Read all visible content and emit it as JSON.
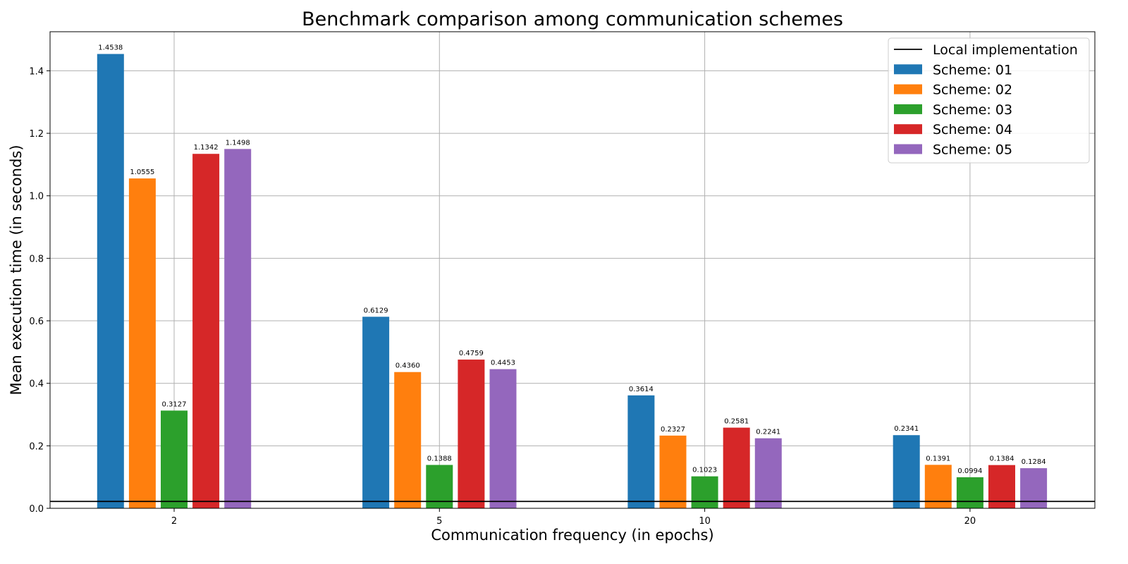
{
  "chart_data": {
    "type": "bar",
    "title": "Benchmark comparison among communication schemes",
    "xlabel": "Communication frequency (in epochs)",
    "ylabel": "Mean execution time (in seconds)",
    "categories": [
      "2",
      "5",
      "10",
      "20"
    ],
    "ylim": [
      0,
      1.525
    ],
    "yticks": [
      0.0,
      0.2,
      0.4,
      0.6,
      0.8,
      1.0,
      1.2,
      1.4
    ],
    "ytick_labels": [
      "0.0",
      "0.2",
      "0.4",
      "0.6",
      "0.8",
      "1.0",
      "1.2",
      "1.4"
    ],
    "grid": true,
    "legend_position": "top-right",
    "reference_line": {
      "name": "Local implementation",
      "value": 0.022,
      "color": "#000000"
    },
    "series": [
      {
        "name": "Scheme: 01",
        "color": "#1f77b4",
        "values": [
          1.4538,
          0.6129,
          0.3614,
          0.2341
        ],
        "labels": [
          "1.4538",
          "0.6129",
          "0.3614",
          "0.2341"
        ]
      },
      {
        "name": "Scheme: 02",
        "color": "#ff7f0e",
        "values": [
          1.0555,
          0.436,
          0.2327,
          0.1391
        ],
        "labels": [
          "1.0555",
          "0.4360",
          "0.2327",
          "0.1391"
        ]
      },
      {
        "name": "Scheme: 03",
        "color": "#2ca02c",
        "values": [
          0.3127,
          0.1388,
          0.1023,
          0.0994
        ],
        "labels": [
          "0.3127",
          "0.1388",
          "0.1023",
          "0.0994"
        ]
      },
      {
        "name": "Scheme: 04",
        "color": "#d62728",
        "values": [
          1.1342,
          0.4759,
          0.2581,
          0.1384
        ],
        "labels": [
          "1.1342",
          "0.4759",
          "0.2581",
          "0.1384"
        ]
      },
      {
        "name": "Scheme: 05",
        "color": "#9467bd",
        "values": [
          1.1498,
          0.4453,
          0.2241,
          0.1284
        ],
        "labels": [
          "1.1498",
          "0.4453",
          "0.2241",
          "0.1284"
        ]
      }
    ]
  }
}
